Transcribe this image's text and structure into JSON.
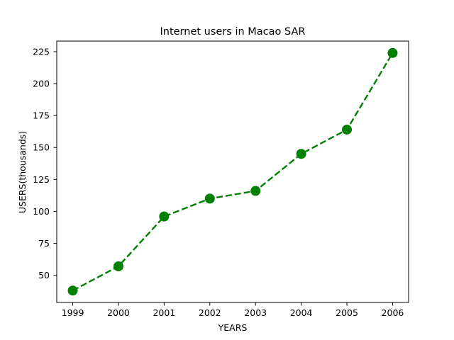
{
  "chart_data": {
    "type": "line",
    "title": "Internet users in Macao SAR",
    "xlabel": "YEARS",
    "ylabel": "USERS(thousands)",
    "x": [
      1999,
      2000,
      2001,
      2002,
      2003,
      2004,
      2005,
      2006
    ],
    "series": [
      {
        "values": [
          38,
          57,
          96,
          110,
          116,
          145,
          164,
          224
        ],
        "color": "#008000",
        "line_style": "dashed",
        "marker": "circle"
      }
    ],
    "xticks": [
      "1999",
      "2000",
      "2001",
      "2002",
      "2003",
      "2004",
      "2005",
      "2006"
    ],
    "yticks": [
      "50",
      "75",
      "100",
      "125",
      "150",
      "175",
      "200",
      "225"
    ],
    "xlim": [
      1998.65,
      2006.35
    ],
    "ylim": [
      28.7,
      233.3
    ],
    "grid": false,
    "legend": "none"
  }
}
